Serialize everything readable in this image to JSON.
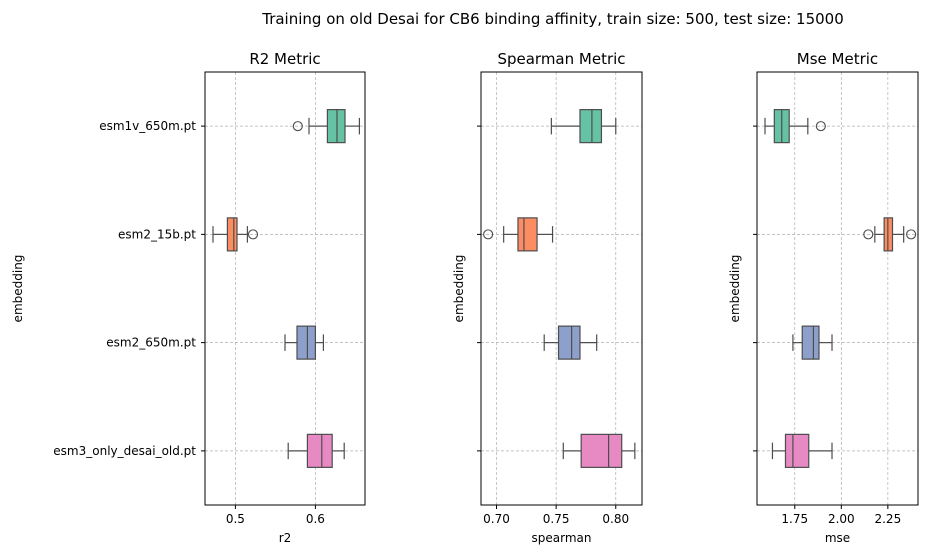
{
  "suptitle": "Training on old Desai for CB6 binding affinity, train size: 500, test size: 15000",
  "colors": {
    "esm1v_650m.pt": "#66c2a5",
    "esm2_15b.pt": "#fc8d62",
    "esm2_650m.pt": "#8da0cb",
    "esm3_only_desai_old.pt": "#e78ac3",
    "line": "#4d4d4d",
    "grid": "#b0b0b0"
  },
  "chart_data": [
    {
      "type": "box",
      "title": "R2 Metric",
      "xlabel": "r2",
      "ylabel": "embedding",
      "categories": [
        "esm1v_650m.pt",
        "esm2_15b.pt",
        "esm2_650m.pt",
        "esm3_only_desai_old.pt"
      ],
      "show_category_labels": true,
      "xlim": [
        0.462,
        0.662
      ],
      "xticks": [
        0.5,
        0.6
      ],
      "xtick_labels": [
        "0.5",
        "0.6"
      ],
      "grid": true,
      "boxes": [
        {
          "whislo": 0.592,
          "q1": 0.615,
          "med": 0.627,
          "q3": 0.637,
          "whishi": 0.655,
          "fliers": [
            0.578
          ]
        },
        {
          "whislo": 0.472,
          "q1": 0.49,
          "med": 0.498,
          "q3": 0.502,
          "whishi": 0.515,
          "fliers": [
            0.522
          ]
        },
        {
          "whislo": 0.562,
          "q1": 0.577,
          "med": 0.59,
          "q3": 0.6,
          "whishi": 0.61,
          "fliers": []
        },
        {
          "whislo": 0.566,
          "q1": 0.59,
          "med": 0.608,
          "q3": 0.621,
          "whishi": 0.636,
          "fliers": []
        }
      ]
    },
    {
      "type": "box",
      "title": "Spearman Metric",
      "xlabel": "spearman",
      "ylabel": "embedding",
      "categories": [
        "esm1v_650m.pt",
        "esm2_15b.pt",
        "esm2_650m.pt",
        "esm3_only_desai_old.pt"
      ],
      "show_category_labels": false,
      "xlim": [
        0.687,
        0.822
      ],
      "xticks": [
        0.7,
        0.75,
        0.8
      ],
      "xtick_labels": [
        "0.70",
        "0.75",
        "0.80"
      ],
      "grid": true,
      "boxes": [
        {
          "whislo": 0.746,
          "q1": 0.77,
          "med": 0.78,
          "q3": 0.788,
          "whishi": 0.8,
          "fliers": []
        },
        {
          "whislo": 0.706,
          "q1": 0.718,
          "med": 0.723,
          "q3": 0.734,
          "whishi": 0.747,
          "fliers": [
            0.693
          ]
        },
        {
          "whislo": 0.74,
          "q1": 0.752,
          "med": 0.763,
          "q3": 0.77,
          "whishi": 0.784,
          "fliers": []
        },
        {
          "whislo": 0.756,
          "q1": 0.771,
          "med": 0.794,
          "q3": 0.805,
          "whishi": 0.816,
          "fliers": []
        }
      ]
    },
    {
      "type": "box",
      "title": "Mse Metric",
      "xlabel": "mse",
      "ylabel": "embedding",
      "categories": [
        "esm1v_650m.pt",
        "esm2_15b.pt",
        "esm2_650m.pt",
        "esm3_only_desai_old.pt"
      ],
      "show_category_labels": false,
      "xlim": [
        1.547,
        2.412
      ],
      "xticks": [
        1.75,
        2.0,
        2.25
      ],
      "xtick_labels": [
        "1.75",
        "2.00",
        "2.25"
      ],
      "grid": true,
      "boxes": [
        {
          "whislo": 1.59,
          "q1": 1.64,
          "med": 1.68,
          "q3": 1.72,
          "whishi": 1.82,
          "fliers": [
            1.89
          ]
        },
        {
          "whislo": 2.18,
          "q1": 2.23,
          "med": 2.25,
          "q3": 2.275,
          "whishi": 2.335,
          "fliers": [
            2.145,
            2.375
          ]
        },
        {
          "whislo": 1.74,
          "q1": 1.79,
          "med": 1.85,
          "q3": 1.88,
          "whishi": 1.95,
          "fliers": []
        },
        {
          "whislo": 1.63,
          "q1": 1.7,
          "med": 1.74,
          "q3": 1.825,
          "whishi": 1.95,
          "fliers": []
        }
      ]
    }
  ]
}
